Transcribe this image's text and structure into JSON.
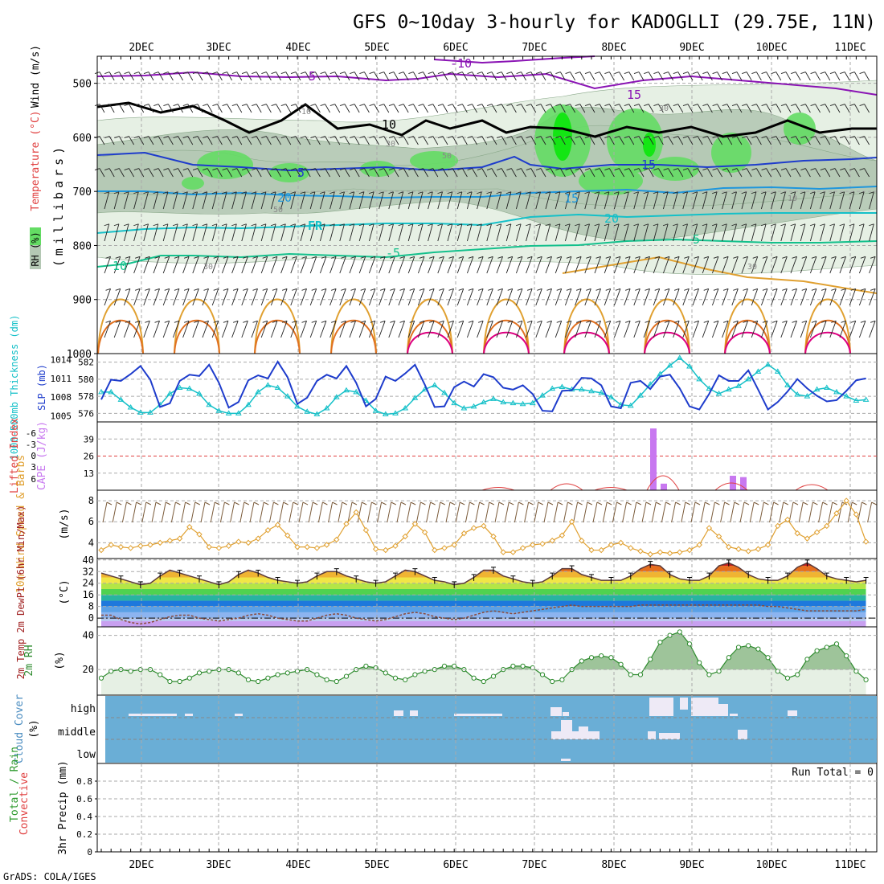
{
  "title": "GFS 0~10day 3-hourly for KADOGLLI (29.75E, 11N)",
  "footer": "GrADS: COLA/IGES",
  "dates": [
    "2DEC",
    "3DEC",
    "4DEC",
    "5DEC",
    "6DEC",
    "7DEC",
    "8DEC",
    "9DEC",
    "10DEC",
    "11DEC"
  ],
  "colors": {
    "purple": "#8a14b4",
    "black": "#000000",
    "blue_dark": "#1e3ccc",
    "blue": "#1e96dc",
    "teal": "#14c0c8",
    "green_teal": "#14c08c",
    "orange": "#e0a030",
    "orange_dark": "#e07020",
    "magenta": "#dc0080",
    "rh_light": "#e6f0e4",
    "rh_mid": "#b4c8b4",
    "rh_green": "#64dc64",
    "rh_bright": "#14e614",
    "grid": "#aaaaaa",
    "cloud_bg": "#6aaed6",
    "cloud_fill": "#eeeaf6"
  },
  "panels": {
    "upper_air": {
      "ylabel_wind": "Wind (m/s)",
      "ylabel_temp": "Temperature (°C)",
      "ylabel_rh": "RH (%)",
      "ylabel_units": "(millibars)",
      "yticks": [
        "500",
        "600",
        "700",
        "800",
        "900",
        "1000"
      ],
      "contour_labels": [
        "-10",
        "-5",
        "5",
        "10",
        "15",
        "20",
        "FR",
        "-5",
        "10",
        "15",
        "20",
        "5",
        "15"
      ],
      "rh_labels": [
        "10",
        "30",
        "50",
        "50",
        "30",
        "30",
        "10",
        "30"
      ]
    },
    "thickness_slp": {
      "ylabel_left": "1000-500mb Thickness (dm)",
      "ylabel_right": "SLP (mb)",
      "yticks_left": [
        "582",
        "580",
        "578",
        "576"
      ],
      "yticks_right": [
        "1014",
        "1011",
        "1008",
        "1005"
      ]
    },
    "cape_li": {
      "ylabel_left": "Lifted Index",
      "ylabel_right": "CAPE (J/kg)",
      "yticks_left": [
        "-6",
        "-3",
        "0",
        "3",
        "6"
      ],
      "yticks_right": [
        "39",
        "26",
        "13"
      ]
    },
    "wind10m": {
      "ylabel": "10m Wind Speed & Barbs",
      "ylabel_units": "(m/s)",
      "yticks": [
        "8",
        "6",
        "4"
      ]
    },
    "temp2m": {
      "ylabel": "2m Temp 2m DewPt (6hr Min/Max)",
      "ylabel_units": "(°C)",
      "yticks": [
        "40",
        "32",
        "24",
        "16",
        "8",
        "0"
      ]
    },
    "rh2m": {
      "ylabel": "2m RH",
      "ylabel_units": "(%)",
      "yticks": [
        "40",
        "20"
      ]
    },
    "cloud": {
      "ylabel": "Cloud Cover",
      "ylabel_units": "(%)",
      "levels": [
        "high",
        "middle",
        "low"
      ]
    },
    "precip": {
      "ylabel_total": "Total / Rain",
      "ylabel_conv": "Convective",
      "ylabel": "3hr Precip (mm)",
      "yticks": [
        "0.8",
        "0.6",
        "0.4",
        "0.2",
        "0"
      ],
      "run_total": "Run Total = 0"
    }
  },
  "chart_data": [
    {
      "type": "line",
      "title": "1000-500mb Thickness (dm) / SLP (mb)",
      "series": [
        {
          "name": "SLP (mb)",
          "values": [
            1007.6,
            1010.8,
            1010.6,
            1011.7,
            1013.0,
            1010.8,
            1006.4,
            1007.0,
            1010.6,
            1011.6,
            1011.4,
            1013.2,
            1010.3,
            1006.3,
            1007.2,
            1010.7,
            1011.5,
            1011.0,
            1013.7,
            1011.2,
            1006.9,
            1007.9,
            1010.6,
            1011.6,
            1011.0,
            1013.0,
            1010.3,
            1006.5,
            1007.7,
            1011.3,
            1010.6,
            1011.8,
            1013.2,
            1010.0,
            1006.4,
            1006.5,
            1009.6,
            1010.5,
            1009.7,
            1011.7,
            1011.2,
            1009.5,
            1009.2,
            1009.9,
            1008.5,
            1005.8,
            1005.7,
            1009.0,
            1009.1,
            1011.1,
            1011.0,
            1009.9,
            1006.5,
            1006.2,
            1010.3,
            1010.6,
            1009.3,
            1011.3,
            1011.6,
            1009.4,
            1006.5,
            1006.0,
            1008.5,
            1011.5,
            1010.6,
            1010.6,
            1012.3,
            1009.2,
            1006.0,
            1007.2,
            1008.9,
            1010.9,
            1009.4,
            1008.2,
            1007.3,
            1007.5,
            1009.0,
            1010.7,
            1011.0
          ]
        },
        {
          "name": "1000-500mb Thickness (dm)",
          "values": [
            578.5,
            578.5,
            577.6,
            576.7,
            576.1,
            576.1,
            577.0,
            578.3,
            579.0,
            578.9,
            578.3,
            577.0,
            576.3,
            576.0,
            576.0,
            577.0,
            578.5,
            579.3,
            579.0,
            578.0,
            576.8,
            576.2,
            575.9,
            576.6,
            577.9,
            578.7,
            578.5,
            577.5,
            576.3,
            575.9,
            576.0,
            576.6,
            577.8,
            578.8,
            579.3,
            578.4,
            577.2,
            576.6,
            576.8,
            577.3,
            577.7,
            577.3,
            577.2,
            577.1,
            577.2,
            578.1,
            578.9,
            579.1,
            578.8,
            578.8,
            578.6,
            578.4,
            577.9,
            577.0,
            576.9,
            578.1,
            579.4,
            580.6,
            581.6,
            582.5,
            581.5,
            580.0,
            578.9,
            578.3,
            578.8,
            579.2,
            580.0,
            580.9,
            581.7,
            580.9,
            579.3,
            578.2,
            578.0,
            578.8,
            579.0,
            578.5,
            578.0,
            577.5,
            577.6
          ]
        }
      ],
      "ylim_left": [
        575,
        583
      ],
      "ylim_right": [
        1004,
        1015
      ]
    },
    {
      "type": "bar",
      "title": "CAPE (J/kg)",
      "x": [
        "8DEC 12Z",
        "8DEC 15Z",
        "9DEC 12Z",
        "9DEC 15Z"
      ],
      "values": [
        47,
        5,
        11,
        10
      ],
      "ylim": [
        0,
        52
      ]
    },
    {
      "type": "line",
      "title": "10m Wind Speed (m/s)",
      "series": [
        {
          "name": "10m Wind Speed",
          "values": [
            3.3,
            3.8,
            3.6,
            3.5,
            3.7,
            3.8,
            4.0,
            4.2,
            4.4,
            5.5,
            4.8,
            3.6,
            3.5,
            3.7,
            4.1,
            4.0,
            4.4,
            5.2,
            5.7,
            4.7,
            3.6,
            3.6,
            3.5,
            3.8,
            4.3,
            5.8,
            6.9,
            5.2,
            3.4,
            3.3,
            3.7,
            4.6,
            5.8,
            5.0,
            3.3,
            3.5,
            3.8,
            4.9,
            5.4,
            5.6,
            4.6,
            3.1,
            3.1,
            3.5,
            3.8,
            3.9,
            4.2,
            4.7,
            6.0,
            4.2,
            3.3,
            3.3,
            3.8,
            4.0,
            3.5,
            3.2,
            2.9,
            3.1,
            3.0,
            3.1,
            3.3,
            3.8,
            5.4,
            4.6,
            3.6,
            3.4,
            3.2,
            3.4,
            3.8,
            5.6,
            6.2,
            4.9,
            4.4,
            5.0,
            5.6,
            6.8,
            8.0,
            6.7,
            4.1
          ]
        }
      ],
      "ylim": [
        2.5,
        9
      ]
    },
    {
      "type": "line",
      "title": "2m Temp / 2m DewPt (°C)",
      "series": [
        {
          "name": "2m Temp",
          "values": [
            31,
            29,
            27,
            25,
            23,
            24,
            29,
            33,
            31,
            29,
            27,
            25,
            23,
            25,
            30,
            33,
            31,
            28,
            26,
            25,
            24,
            25,
            29,
            32,
            32,
            29,
            27,
            25,
            24,
            25,
            29,
            33,
            32,
            29,
            26,
            25,
            23,
            24,
            28,
            33,
            33,
            29,
            27,
            25,
            24,
            25,
            29,
            34,
            34,
            30,
            28,
            26,
            26,
            26,
            29,
            34,
            37,
            36,
            30,
            27,
            26,
            26,
            29,
            36,
            38,
            35,
            30,
            27,
            26,
            26,
            29,
            35,
            38,
            34,
            29,
            27,
            26,
            25,
            26
          ]
        },
        {
          "name": "2m DewPt",
          "values": [
            2,
            2,
            -1,
            -3,
            -4,
            -3,
            -1,
            1,
            2,
            2,
            0,
            -1,
            -2,
            -1,
            0,
            2,
            3,
            2,
            0,
            -1,
            -2,
            -2,
            0,
            2,
            3,
            2,
            0,
            -1,
            -2,
            -1,
            1,
            3,
            4,
            3,
            1,
            0,
            -1,
            0,
            2,
            4,
            5,
            4,
            3,
            4,
            5,
            6,
            7,
            8,
            9,
            8,
            8,
            8,
            8,
            8,
            8,
            9,
            9,
            9,
            9,
            9,
            9,
            9,
            9,
            9,
            9,
            9,
            9,
            9,
            8,
            8,
            7,
            6,
            5,
            5,
            5,
            5,
            5,
            5,
            6
          ]
        }
      ],
      "ylim": [
        -6,
        41
      ]
    },
    {
      "type": "area",
      "title": "2m RH (%)",
      "series": [
        {
          "name": "2m RH",
          "values": [
            15,
            19,
            20,
            19,
            20,
            20,
            17,
            13,
            13,
            15,
            18,
            19,
            20,
            20,
            18,
            14,
            13,
            15,
            17,
            18,
            19,
            20,
            17,
            14,
            13,
            16,
            20,
            22,
            21,
            18,
            15,
            14,
            17,
            19,
            20,
            22,
            22,
            20,
            15,
            13,
            16,
            20,
            22,
            22,
            21,
            17,
            13,
            14,
            20,
            25,
            27,
            28,
            27,
            23,
            17,
            17,
            26,
            36,
            40,
            42,
            35,
            24,
            17,
            19,
            27,
            33,
            34,
            32,
            27,
            19,
            15,
            17,
            26,
            31,
            33,
            35,
            28,
            19,
            14
          ]
        }
      ],
      "ylim": [
        5,
        45
      ]
    },
    {
      "type": "bar",
      "title": "3hr Precip (mm)",
      "values": [],
      "ylim": [
        0,
        1
      ]
    }
  ]
}
